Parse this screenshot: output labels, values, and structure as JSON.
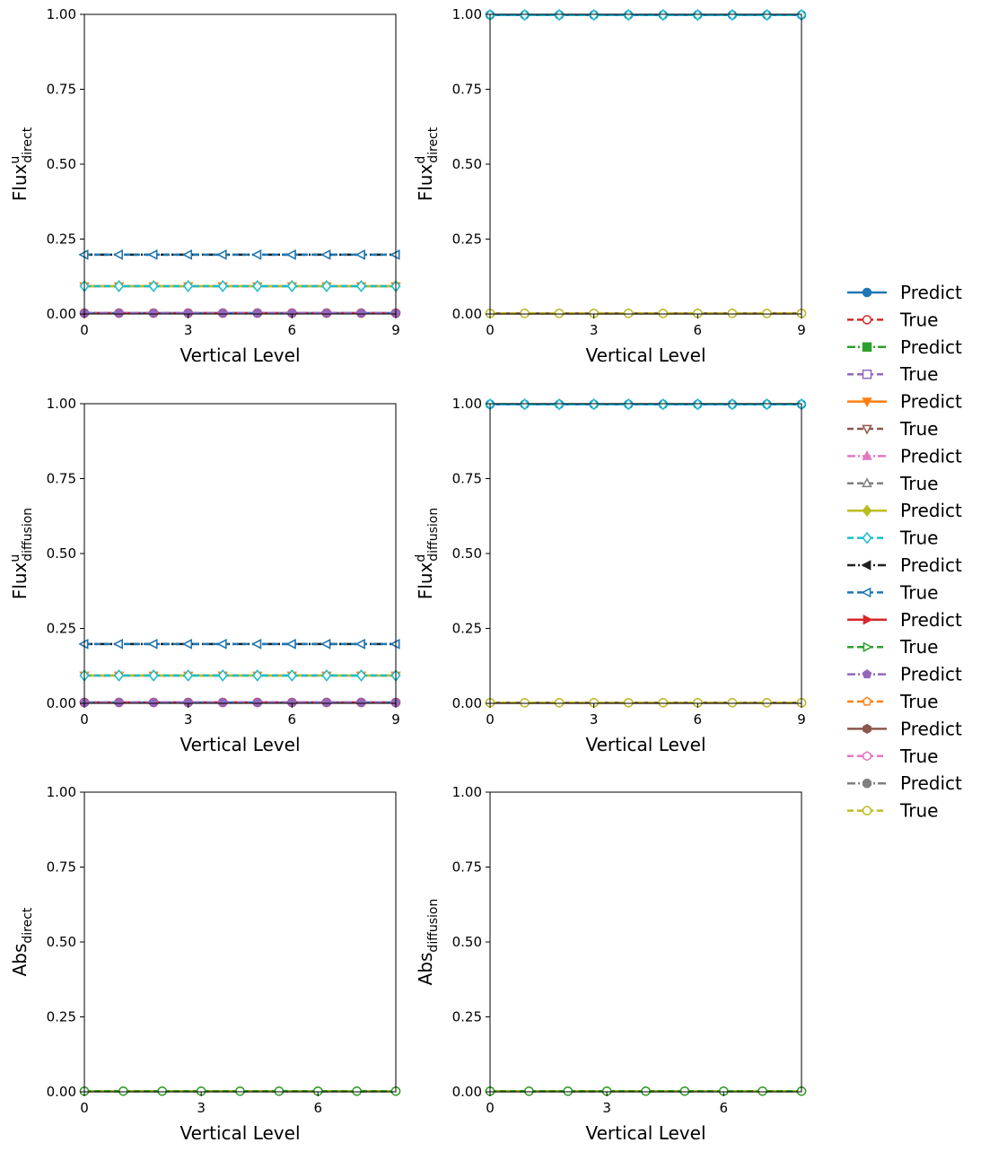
{
  "chart_data": [
    {
      "type": "line",
      "ylabel": "Flux",
      "ylabel_sup": "u",
      "ylabel_sub": "direct",
      "xlabel": "Vertical Level",
      "xlim": [
        0,
        9
      ],
      "ylim": [
        0,
        1
      ],
      "xticks": [
        "0",
        "3",
        "6",
        "9"
      ],
      "yticks": [
        "0.00",
        "0.25",
        "0.50",
        "0.75",
        "1.00"
      ],
      "x": [
        0,
        1,
        2,
        3,
        4,
        5,
        6,
        7,
        8,
        9
      ],
      "series": [
        {
          "name": "Predict",
          "color": "#1f77b4",
          "style": "solid",
          "marker": "circle",
          "filled": true,
          "values": [
            0.003,
            0.003,
            0.003,
            0.003,
            0.003,
            0.003,
            0.003,
            0.003,
            0.003,
            0.003
          ]
        },
        {
          "name": "True",
          "color": "#d62728",
          "style": "dashed",
          "marker": "circle",
          "filled": false,
          "values": [
            0.003,
            0.003,
            0.003,
            0.003,
            0.003,
            0.003,
            0.003,
            0.003,
            0.003,
            0.003
          ]
        },
        {
          "name": "Predict",
          "color": "#9467bd",
          "style": "dashdot",
          "marker": "pentagon",
          "filled": true,
          "values": [
            0.003,
            0.003,
            0.003,
            0.003,
            0.003,
            0.003,
            0.003,
            0.003,
            0.003,
            0.003
          ]
        },
        {
          "name": "Predict",
          "color": "#ff7f0e",
          "style": "solid",
          "marker": "triangle-down",
          "filled": true,
          "values": [
            0.093,
            0.093,
            0.093,
            0.093,
            0.093,
            0.093,
            0.093,
            0.093,
            0.093,
            0.093
          ]
        },
        {
          "name": "Predict",
          "color": "#bcbd22",
          "style": "solid",
          "marker": "diamond",
          "filled": true,
          "values": [
            0.093,
            0.093,
            0.093,
            0.093,
            0.093,
            0.093,
            0.093,
            0.093,
            0.093,
            0.093
          ]
        },
        {
          "name": "True",
          "color": "#17becf",
          "style": "dashed",
          "marker": "diamond",
          "filled": false,
          "values": [
            0.093,
            0.093,
            0.093,
            0.093,
            0.093,
            0.093,
            0.093,
            0.093,
            0.093,
            0.093
          ]
        },
        {
          "name": "Predict",
          "color": "#202020",
          "style": "dashdot",
          "marker": "triangle-left",
          "filled": true,
          "values": [
            0.198,
            0.198,
            0.198,
            0.198,
            0.198,
            0.198,
            0.198,
            0.198,
            0.198,
            0.198
          ]
        },
        {
          "name": "True",
          "color": "#1f77b4",
          "style": "dashed",
          "marker": "triangle-left",
          "filled": false,
          "values": [
            0.198,
            0.198,
            0.198,
            0.198,
            0.198,
            0.198,
            0.198,
            0.198,
            0.198,
            0.198
          ]
        }
      ]
    },
    {
      "type": "line",
      "ylabel": "Flux",
      "ylabel_sup": "d",
      "ylabel_sub": "direct",
      "xlabel": "Vertical Level",
      "xlim": [
        0,
        9
      ],
      "ylim": [
        0,
        1
      ],
      "xticks": [
        "0",
        "3",
        "6",
        "9"
      ],
      "yticks": [
        "0.00",
        "0.25",
        "0.50",
        "0.75",
        "1.00"
      ],
      "x": [
        0,
        1,
        2,
        3,
        4,
        5,
        6,
        7,
        8,
        9
      ],
      "series": [
        {
          "name": "Predict",
          "color": "#8c564b",
          "style": "solid",
          "marker": "circle",
          "filled": true,
          "values": [
            0.002,
            0.002,
            0.002,
            0.002,
            0.002,
            0.002,
            0.002,
            0.002,
            0.002,
            0.002
          ]
        },
        {
          "name": "True",
          "color": "#bcbd22",
          "style": "dashed",
          "marker": "circle",
          "filled": false,
          "values": [
            0.002,
            0.002,
            0.002,
            0.002,
            0.002,
            0.002,
            0.002,
            0.002,
            0.002,
            0.002
          ]
        },
        {
          "name": "Predict",
          "color": "#1f77b4",
          "style": "solid",
          "marker": "circle",
          "filled": true,
          "values": [
            0.998,
            0.998,
            0.998,
            0.998,
            0.998,
            0.998,
            0.998,
            0.998,
            0.998,
            0.998
          ]
        },
        {
          "name": "True",
          "color": "#17becf",
          "style": "dashed",
          "marker": "diamond",
          "filled": false,
          "values": [
            0.998,
            0.998,
            0.998,
            0.998,
            0.998,
            0.998,
            0.998,
            0.998,
            0.998,
            0.998
          ]
        }
      ]
    },
    {
      "type": "line",
      "ylabel": "Flux",
      "ylabel_sup": "u",
      "ylabel_sub": "diffusion",
      "xlabel": "Vertical Level",
      "xlim": [
        0,
        9
      ],
      "ylim": [
        0,
        1
      ],
      "xticks": [
        "0",
        "3",
        "6",
        "9"
      ],
      "yticks": [
        "0.00",
        "0.25",
        "0.50",
        "0.75",
        "1.00"
      ],
      "x": [
        0,
        1,
        2,
        3,
        4,
        5,
        6,
        7,
        8,
        9
      ],
      "series": [
        {
          "name": "Predict",
          "color": "#1f77b4",
          "style": "solid",
          "marker": "circle",
          "filled": true,
          "values": [
            0.003,
            0.003,
            0.003,
            0.003,
            0.003,
            0.003,
            0.003,
            0.003,
            0.003,
            0.003
          ]
        },
        {
          "name": "True",
          "color": "#d62728",
          "style": "dashed",
          "marker": "circle",
          "filled": false,
          "values": [
            0.003,
            0.003,
            0.003,
            0.003,
            0.003,
            0.003,
            0.003,
            0.003,
            0.003,
            0.003
          ]
        },
        {
          "name": "Predict",
          "color": "#9467bd",
          "style": "dashdot",
          "marker": "pentagon",
          "filled": true,
          "values": [
            0.003,
            0.003,
            0.003,
            0.003,
            0.003,
            0.003,
            0.003,
            0.003,
            0.003,
            0.003
          ]
        },
        {
          "name": "Predict",
          "color": "#ff7f0e",
          "style": "solid",
          "marker": "triangle-down",
          "filled": true,
          "values": [
            0.093,
            0.093,
            0.093,
            0.093,
            0.093,
            0.093,
            0.093,
            0.093,
            0.093,
            0.093
          ]
        },
        {
          "name": "Predict",
          "color": "#bcbd22",
          "style": "solid",
          "marker": "diamond",
          "filled": true,
          "values": [
            0.093,
            0.093,
            0.093,
            0.093,
            0.093,
            0.093,
            0.093,
            0.093,
            0.093,
            0.093
          ]
        },
        {
          "name": "True",
          "color": "#17becf",
          "style": "dashed",
          "marker": "diamond",
          "filled": false,
          "values": [
            0.093,
            0.093,
            0.093,
            0.093,
            0.093,
            0.093,
            0.093,
            0.093,
            0.093,
            0.093
          ]
        },
        {
          "name": "Predict",
          "color": "#202020",
          "style": "dashdot",
          "marker": "triangle-left",
          "filled": true,
          "values": [
            0.198,
            0.198,
            0.198,
            0.198,
            0.198,
            0.198,
            0.198,
            0.198,
            0.198,
            0.198
          ]
        },
        {
          "name": "True",
          "color": "#1f77b4",
          "style": "dashed",
          "marker": "triangle-left",
          "filled": false,
          "values": [
            0.198,
            0.198,
            0.198,
            0.198,
            0.198,
            0.198,
            0.198,
            0.198,
            0.198,
            0.198
          ]
        }
      ]
    },
    {
      "type": "line",
      "ylabel": "Flux",
      "ylabel_sup": "d",
      "ylabel_sub": "diffusion",
      "xlabel": "Vertical Level",
      "xlim": [
        0,
        9
      ],
      "ylim": [
        0,
        1
      ],
      "xticks": [
        "0",
        "3",
        "6",
        "9"
      ],
      "yticks": [
        "0.00",
        "0.25",
        "0.50",
        "0.75",
        "1.00"
      ],
      "x": [
        0,
        1,
        2,
        3,
        4,
        5,
        6,
        7,
        8,
        9
      ],
      "series": [
        {
          "name": "Predict",
          "color": "#8c564b",
          "style": "solid",
          "marker": "circle",
          "filled": true,
          "values": [
            0.002,
            0.002,
            0.002,
            0.002,
            0.002,
            0.002,
            0.002,
            0.002,
            0.002,
            0.002
          ]
        },
        {
          "name": "True",
          "color": "#bcbd22",
          "style": "dashed",
          "marker": "circle",
          "filled": false,
          "values": [
            0.002,
            0.002,
            0.002,
            0.002,
            0.002,
            0.002,
            0.002,
            0.002,
            0.002,
            0.002
          ]
        },
        {
          "name": "Predict",
          "color": "#1f77b4",
          "style": "solid",
          "marker": "circle",
          "filled": true,
          "values": [
            0.998,
            0.998,
            0.998,
            0.998,
            0.998,
            0.998,
            0.998,
            0.998,
            0.998,
            0.998
          ]
        },
        {
          "name": "True",
          "color": "#17becf",
          "style": "dashed",
          "marker": "diamond",
          "filled": false,
          "values": [
            0.998,
            0.998,
            0.998,
            0.998,
            0.998,
            0.998,
            0.998,
            0.998,
            0.998,
            0.998
          ]
        }
      ]
    },
    {
      "type": "line",
      "ylabel": "Abs",
      "ylabel_sup": "",
      "ylabel_sub": "direct",
      "xlabel": "Vertical Level",
      "xlim": [
        0,
        8
      ],
      "ylim": [
        0,
        1
      ],
      "xticks": [
        "0",
        "3",
        "6"
      ],
      "yticks": [
        "0.00",
        "0.25",
        "0.50",
        "0.75",
        "1.00"
      ],
      "x": [
        0,
        1,
        2,
        3,
        4,
        5,
        6,
        7,
        8
      ],
      "series": [
        {
          "name": "Predict",
          "color": "#1f77b4",
          "style": "solid",
          "marker": "circle",
          "filled": true,
          "values": [
            0.002,
            0.002,
            0.002,
            0.002,
            0.002,
            0.002,
            0.002,
            0.002,
            0.002
          ]
        },
        {
          "name": "True",
          "color": "#d62728",
          "style": "dashed",
          "marker": "circle",
          "filled": false,
          "values": [
            0.002,
            0.002,
            0.002,
            0.002,
            0.002,
            0.002,
            0.002,
            0.002,
            0.002
          ]
        },
        {
          "name": "Predict",
          "color": "#bcbd22",
          "style": "solid",
          "marker": "circle",
          "filled": true,
          "values": [
            0.002,
            0.002,
            0.002,
            0.002,
            0.002,
            0.002,
            0.002,
            0.002,
            0.002
          ]
        },
        {
          "name": "True",
          "color": "#2ca02c",
          "style": "dashed",
          "marker": "circle",
          "filled": false,
          "values": [
            0.002,
            0.002,
            0.002,
            0.002,
            0.002,
            0.002,
            0.002,
            0.002,
            0.002
          ]
        }
      ]
    },
    {
      "type": "line",
      "ylabel": "Abs",
      "ylabel_sup": "",
      "ylabel_sub": "diffusion",
      "xlabel": "Vertical Level",
      "xlim": [
        0,
        8
      ],
      "ylim": [
        0,
        1
      ],
      "xticks": [
        "0",
        "3",
        "6"
      ],
      "yticks": [
        "0.00",
        "0.25",
        "0.50",
        "0.75",
        "1.00"
      ],
      "x": [
        0,
        1,
        2,
        3,
        4,
        5,
        6,
        7,
        8
      ],
      "series": [
        {
          "name": "Predict",
          "color": "#1f77b4",
          "style": "solid",
          "marker": "circle",
          "filled": true,
          "values": [
            0.002,
            0.002,
            0.002,
            0.002,
            0.002,
            0.002,
            0.002,
            0.002,
            0.002
          ]
        },
        {
          "name": "True",
          "color": "#d62728",
          "style": "dashed",
          "marker": "circle",
          "filled": false,
          "values": [
            0.002,
            0.002,
            0.002,
            0.002,
            0.002,
            0.002,
            0.002,
            0.002,
            0.002
          ]
        },
        {
          "name": "Predict",
          "color": "#bcbd22",
          "style": "solid",
          "marker": "circle",
          "filled": true,
          "values": [
            0.002,
            0.002,
            0.002,
            0.002,
            0.002,
            0.002,
            0.002,
            0.002,
            0.002
          ]
        },
        {
          "name": "True",
          "color": "#2ca02c",
          "style": "dashed",
          "marker": "circle",
          "filled": false,
          "values": [
            0.002,
            0.002,
            0.002,
            0.002,
            0.002,
            0.002,
            0.002,
            0.002,
            0.002
          ]
        }
      ]
    }
  ],
  "legend": {
    "placement": "right",
    "entries": [
      {
        "label": "Predict",
        "color": "#1f77b4",
        "style": "solid",
        "marker": "circle",
        "filled": true
      },
      {
        "label": "True",
        "color": "#d62728",
        "style": "dashed",
        "marker": "circle",
        "filled": false
      },
      {
        "label": "Predict",
        "color": "#2ca02c",
        "style": "dashdot",
        "marker": "square",
        "filled": true
      },
      {
        "label": "True",
        "color": "#9467bd",
        "style": "dashed",
        "marker": "square",
        "filled": false
      },
      {
        "label": "Predict",
        "color": "#ff7f0e",
        "style": "solid",
        "marker": "triangle-down",
        "filled": true
      },
      {
        "label": "True",
        "color": "#8c564b",
        "style": "dashed",
        "marker": "triangle-down",
        "filled": false
      },
      {
        "label": "Predict",
        "color": "#e377c2",
        "style": "dashdot",
        "marker": "triangle-up",
        "filled": true
      },
      {
        "label": "True",
        "color": "#7f7f7f",
        "style": "dashed",
        "marker": "triangle-up",
        "filled": false
      },
      {
        "label": "Predict",
        "color": "#bcbd22",
        "style": "solid",
        "marker": "diamond",
        "filled": true
      },
      {
        "label": "True",
        "color": "#17becf",
        "style": "dashed",
        "marker": "diamond",
        "filled": false
      },
      {
        "label": "Predict",
        "color": "#202020",
        "style": "dashdot",
        "marker": "triangle-left",
        "filled": true
      },
      {
        "label": "True",
        "color": "#1f77b4",
        "style": "dashed",
        "marker": "triangle-left",
        "filled": false
      },
      {
        "label": "Predict",
        "color": "#d62728",
        "style": "solid",
        "marker": "triangle-right",
        "filled": true
      },
      {
        "label": "True",
        "color": "#2ca02c",
        "style": "dashed",
        "marker": "triangle-right",
        "filled": false
      },
      {
        "label": "Predict",
        "color": "#9467bd",
        "style": "dashdot",
        "marker": "pentagon",
        "filled": true
      },
      {
        "label": "True",
        "color": "#ff7f0e",
        "style": "dashed",
        "marker": "pentagon",
        "filled": false
      },
      {
        "label": "Predict",
        "color": "#8c564b",
        "style": "solid",
        "marker": "hexagon",
        "filled": true
      },
      {
        "label": "True",
        "color": "#e377c2",
        "style": "dashed",
        "marker": "hexagon",
        "filled": false
      },
      {
        "label": "Predict",
        "color": "#7f7f7f",
        "style": "dashdot",
        "marker": "octagon",
        "filled": true
      },
      {
        "label": "True",
        "color": "#bcbd22",
        "style": "dashed",
        "marker": "octagon",
        "filled": false
      }
    ]
  }
}
